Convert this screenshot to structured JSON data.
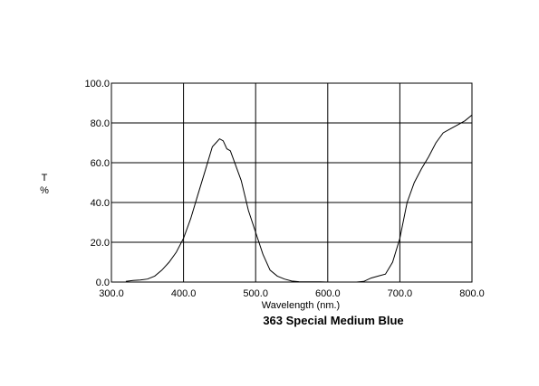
{
  "chart_data": {
    "type": "line",
    "title": "363 Special Medium Blue",
    "xlabel": "Wavelength (nm.)",
    "ylabel_line1": "T",
    "ylabel_line2": "%",
    "xlim": [
      300.0,
      800.0
    ],
    "ylim": [
      0.0,
      100.0
    ],
    "x_ticks": [
      300.0,
      400.0,
      500.0,
      600.0,
      700.0,
      800.0
    ],
    "x_tick_labels": [
      "300.0",
      "400.0",
      "500.0",
      "600.0",
      "700.0",
      "800.0"
    ],
    "y_ticks": [
      0.0,
      20.0,
      40.0,
      60.0,
      80.0,
      100.0
    ],
    "y_tick_labels": [
      "0.0",
      "20.0",
      "40.0",
      "60.0",
      "80.0",
      "100.0"
    ],
    "grid": true,
    "colors": {
      "line": "#000000",
      "grid": "#000000",
      "background": "#ffffff"
    },
    "series": [
      {
        "x": [
          320,
          330,
          340,
          350,
          360,
          370,
          380,
          390,
          400,
          410,
          420,
          430,
          440,
          445,
          450,
          455,
          460,
          465,
          470,
          480,
          490,
          500,
          510,
          520,
          530,
          540,
          550,
          560,
          570,
          580,
          590,
          600,
          610,
          620,
          630,
          640,
          650,
          660,
          670,
          680,
          690,
          700,
          710,
          720,
          730,
          740,
          750,
          760,
          770,
          780,
          790,
          800
        ],
        "y": [
          0.3,
          0.8,
          1.0,
          1.5,
          3.0,
          6.0,
          10.0,
          15.0,
          22.0,
          32.0,
          44.0,
          56.0,
          68.0,
          70.0,
          72.0,
          71.0,
          67.0,
          66.0,
          61.0,
          51.0,
          36.0,
          25.0,
          14.0,
          6.0,
          3.0,
          1.5,
          0.5,
          0.2,
          0.1,
          0.1,
          0.1,
          0.0,
          0.0,
          0.0,
          0.0,
          0.0,
          0.3,
          2.0,
          3.0,
          4.0,
          10.0,
          22.0,
          40.0,
          50.0,
          57.0,
          63.0,
          70.0,
          75.0,
          77.0,
          79.0,
          81.0,
          84.0
        ]
      }
    ]
  }
}
